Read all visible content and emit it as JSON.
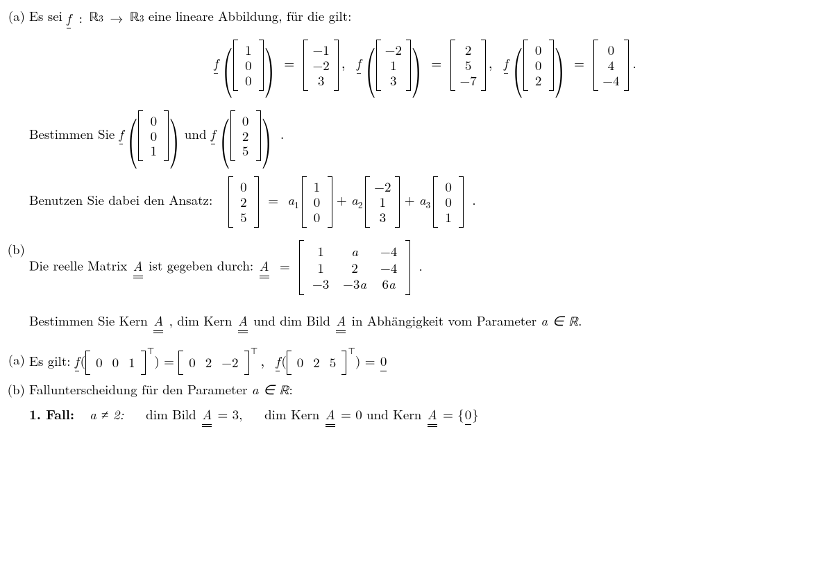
{
  "partA": {
    "label": "(a)",
    "intro_pre": "Es sei ",
    "map_text": " eine lineare Abbildung, für die gilt:",
    "f_sym": "f",
    "R": "ℝ",
    "dim": "3",
    "given": [
      {
        "in": [
          "1",
          "0",
          "0"
        ],
        "out": [
          "−1",
          "−2",
          "3"
        ]
      },
      {
        "in": [
          "−2",
          "1",
          "3"
        ],
        "out": [
          "2",
          "5",
          "−7"
        ]
      },
      {
        "in": [
          "0",
          "0",
          "2"
        ],
        "out": [
          "0",
          "4",
          "−4"
        ]
      }
    ],
    "determine_pre": "Bestimmen Sie ",
    "and": " und ",
    "vecs_to_find": [
      [
        "0",
        "0",
        "1"
      ],
      [
        "0",
        "2",
        "5"
      ]
    ],
    "ansatz_pre": "Benutzen Sie dabei den Ansatz:",
    "ansatz_lhs": [
      "0",
      "2",
      "5"
    ],
    "ansatz_terms": [
      {
        "coef": "a",
        "sub": "1",
        "vec": [
          "1",
          "0",
          "0"
        ]
      },
      {
        "coef": "a",
        "sub": "2",
        "vec": [
          "−2",
          "1",
          "3"
        ]
      },
      {
        "coef": "a",
        "sub": "3",
        "vec": [
          "0",
          "0",
          "1"
        ]
      }
    ]
  },
  "partB": {
    "label": "(b)",
    "intro_pre": "Die reelle Matrix ",
    "intro_mid": " ist gegeben durch:  ",
    "A": "A",
    "matrix": [
      [
        "1",
        "a",
        "−4"
      ],
      [
        "1",
        "2",
        "−4"
      ],
      [
        "−3",
        "−3a",
        "6a"
      ]
    ],
    "task_pre": "Bestimmen Sie  Kern ",
    "task_mid1": ",  dim Kern ",
    "task_mid2": "  und  dim Bild ",
    "task_post": "  in Abhängigkeit vom Parameter ",
    "param": "a ∈ ℝ",
    "period": "."
  },
  "solA": {
    "label": "(a)",
    "pre": "Es gilt:  ",
    "rows": [
      {
        "in": [
          "0",
          "0",
          "1"
        ],
        "out": [
          "0",
          "2",
          "−2"
        ]
      }
    ],
    "second_in": [
      "0",
      "2",
      "5"
    ],
    "rhs_zero": "0"
  },
  "solB": {
    "label": "(b)",
    "line": "Fallunterscheidung für den Parameter ",
    "param": "a ∈ ℝ",
    "colon": ":",
    "case1_label": "1. Fall:",
    "case1_cond": "a ≠ 2:",
    "dimBild": "dim Bild ",
    "dimKern": "dim Kern ",
    "kern": "Kern ",
    "eq3": " = 3,",
    "eq0": " = 0",
    "und": "  und  ",
    "kern_set_pre": " = {",
    "kern_set_post": "}"
  }
}
